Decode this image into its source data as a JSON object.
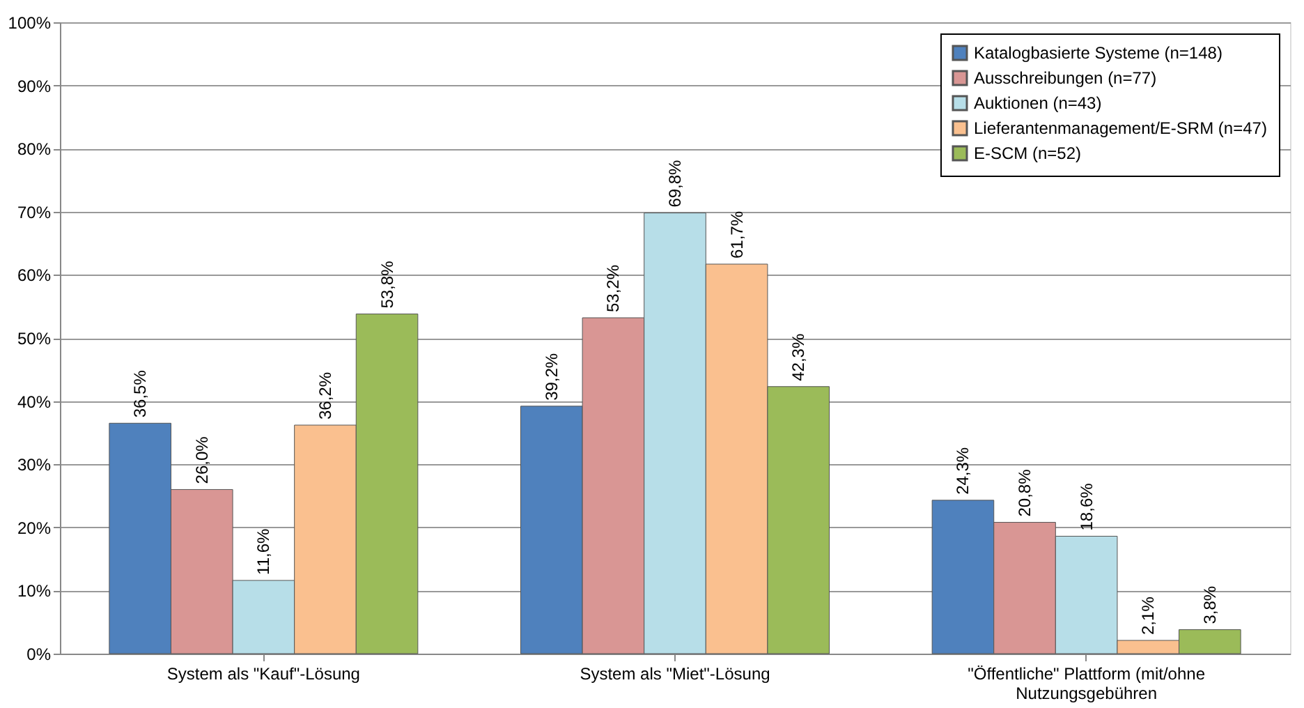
{
  "chart_data": {
    "type": "bar",
    "categories": [
      "System als \"Kauf\"-Lösung",
      "System als \"Miet\"-Lösung",
      "\"Öffentliche\" Plattform (mit/ohne\nNutzungsgebühren"
    ],
    "series": [
      {
        "name": "Katalogbasierte Systeme (n=148)",
        "color": "#4f81bd",
        "values": [
          36.5,
          39.2,
          24.3
        ],
        "value_labels": [
          "36,5%",
          "39,2%",
          "24,3%"
        ]
      },
      {
        "name": "Ausschreibungen (n=77)",
        "color": "#d99694",
        "values": [
          26.0,
          53.2,
          20.8
        ],
        "value_labels": [
          "26,0%",
          "53,2%",
          "20,8%"
        ]
      },
      {
        "name": "Auktionen (n=43)",
        "color": "#b7dee8",
        "values": [
          11.6,
          69.8,
          18.6
        ],
        "value_labels": [
          "11,6%",
          "69,8%",
          "18,6%"
        ]
      },
      {
        "name": "Lieferantenmanagement/E-SRM (n=47)",
        "color": "#fac08f",
        "values": [
          36.2,
          61.7,
          2.1
        ],
        "value_labels": [
          "36,2%",
          "61,7%",
          "2,1%"
        ]
      },
      {
        "name": "E-SCM (n=52)",
        "color": "#9bbb59",
        "values": [
          53.8,
          42.3,
          3.8
        ],
        "value_labels": [
          "53,8%",
          "42,3%",
          "3,8%"
        ]
      }
    ],
    "ylim": [
      0,
      100
    ],
    "yticks": [
      {
        "value": 0,
        "label": "0%"
      },
      {
        "value": 10,
        "label": "10%"
      },
      {
        "value": 20,
        "label": "20%"
      },
      {
        "value": 30,
        "label": "30%"
      },
      {
        "value": 40,
        "label": "40%"
      },
      {
        "value": 50,
        "label": "50%"
      },
      {
        "value": 60,
        "label": "60%"
      },
      {
        "value": 70,
        "label": "70%"
      },
      {
        "value": 80,
        "label": "80%"
      },
      {
        "value": 90,
        "label": "90%"
      },
      {
        "value": 100,
        "label": "100%"
      }
    ],
    "grid": "y",
    "legend": "top right"
  }
}
